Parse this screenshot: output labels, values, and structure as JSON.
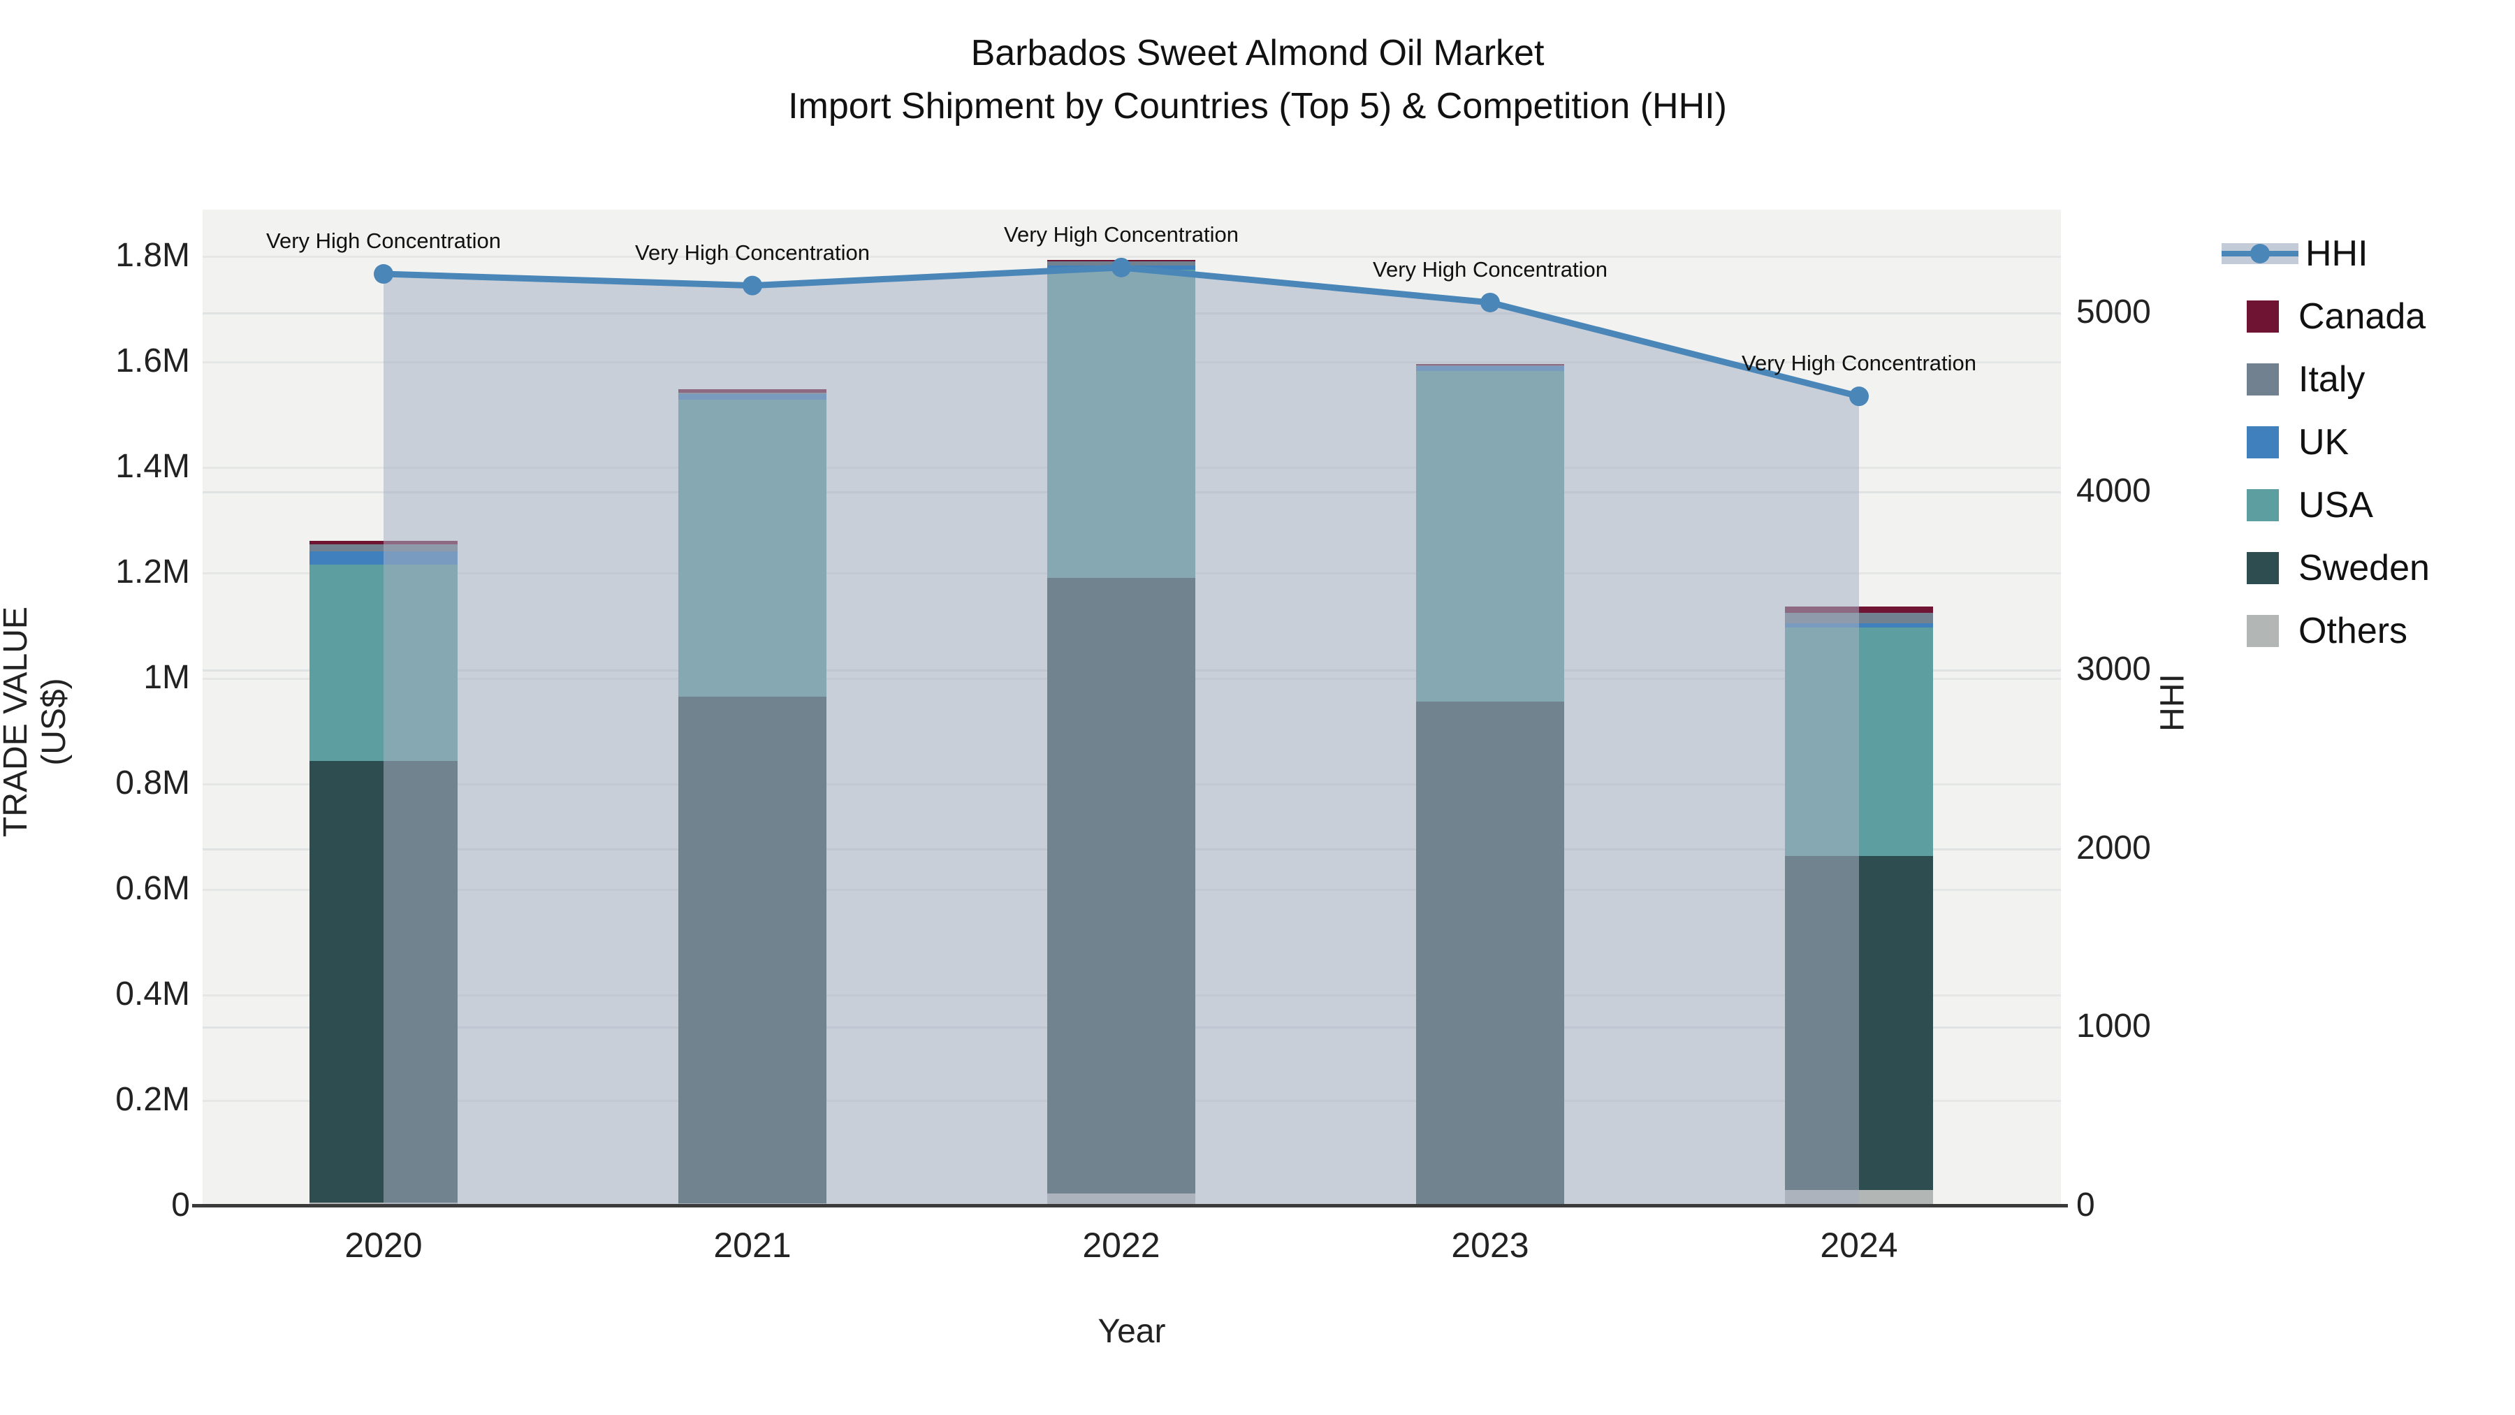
{
  "title": {
    "line1": "Barbados Sweet Almond Oil Market",
    "line2": "Import Shipment by Countries (Top 5) & Competition (HHI)"
  },
  "axes": {
    "left": {
      "label": "TRADE VALUE (US$)",
      "ticks": [
        {
          "value": 0,
          "label": "0"
        },
        {
          "value": 200000,
          "label": "0.2M"
        },
        {
          "value": 400000,
          "label": "0.4M"
        },
        {
          "value": 600000,
          "label": "0.6M"
        },
        {
          "value": 800000,
          "label": "0.8M"
        },
        {
          "value": 1000000,
          "label": "1M"
        },
        {
          "value": 1200000,
          "label": "1.2M"
        },
        {
          "value": 1400000,
          "label": "1.4M"
        },
        {
          "value": 1600000,
          "label": "1.6M"
        },
        {
          "value": 1800000,
          "label": "1.8M"
        }
      ]
    },
    "right": {
      "label": "HHI",
      "ticks": [
        {
          "value": 0,
          "label": "0"
        },
        {
          "value": 1000,
          "label": "1000"
        },
        {
          "value": 2000,
          "label": "2000"
        },
        {
          "value": 3000,
          "label": "3000"
        },
        {
          "value": 4000,
          "label": "4000"
        },
        {
          "value": 5000,
          "label": "5000"
        }
      ]
    },
    "x": {
      "label": "Year"
    }
  },
  "annotation_text": "Very High Concentration",
  "legend": [
    {
      "name": "HHI",
      "type": "line",
      "color": "#4a86b8"
    },
    {
      "name": "Canada",
      "type": "box",
      "color": "#701434"
    },
    {
      "name": "Italy",
      "type": "box",
      "color": "#71818f"
    },
    {
      "name": "UK",
      "type": "box",
      "color": "#4081bd"
    },
    {
      "name": "USA",
      "type": "box",
      "color": "#5d9ea0"
    },
    {
      "name": "Sweden",
      "type": "box",
      "color": "#2e4d50"
    },
    {
      "name": "Others",
      "type": "box",
      "color": "#b2b7b6"
    }
  ],
  "chart_data": {
    "type": "bar",
    "subtype": "stacked-bars-with-line",
    "categories": [
      "2020",
      "2021",
      "2022",
      "2023",
      "2024"
    ],
    "series": [
      {
        "name": "Canada",
        "color": "#701434",
        "values": [
          7000,
          7000,
          3000,
          3000,
          12000
        ]
      },
      {
        "name": "Italy",
        "color": "#71818f",
        "values": [
          13000,
          2000,
          8000,
          1000,
          20000
        ]
      },
      {
        "name": "UK",
        "color": "#4081bd",
        "values": [
          26000,
          11000,
          7000,
          9000,
          8000
        ]
      },
      {
        "name": "USA",
        "color": "#5d9ea0",
        "values": [
          371000,
          563000,
          585000,
          627000,
          433000
        ]
      },
      {
        "name": "Sweden",
        "color": "#2e4d50",
        "values": [
          838000,
          960000,
          1166000,
          952000,
          633000
        ]
      },
      {
        "name": "Others",
        "color": "#b2b7b6",
        "values": [
          5000,
          4000,
          23000,
          3000,
          29000
        ]
      }
    ],
    "totals": [
      1260000,
      1547000,
      1792000,
      1595000,
      1135000
    ],
    "line_series": {
      "name": "HHI",
      "color": "#4a86b8",
      "area_color": "rgba(167,176,194,0.55)",
      "values": [
        5215,
        5150,
        5251,
        5055,
        4530
      ]
    },
    "title": "Barbados Sweet Almond Oil Market — Import Shipment by Countries (Top 5) & Competition (HHI)",
    "xlabel": "Year",
    "ylabel_left": "TRADE VALUE (US$)",
    "ylabel_right": "HHI",
    "ylim_left": [
      0,
      1800000
    ],
    "ylim_right": [
      0,
      5000
    ],
    "grid": true,
    "legend_position": "right",
    "stack_order_top_to_bottom": [
      "Canada",
      "Italy",
      "UK",
      "USA",
      "Sweden",
      "Others"
    ],
    "annotations": [
      "Very High Concentration",
      "Very High Concentration",
      "Very High Concentration",
      "Very High Concentration",
      "Very High Concentration"
    ]
  }
}
